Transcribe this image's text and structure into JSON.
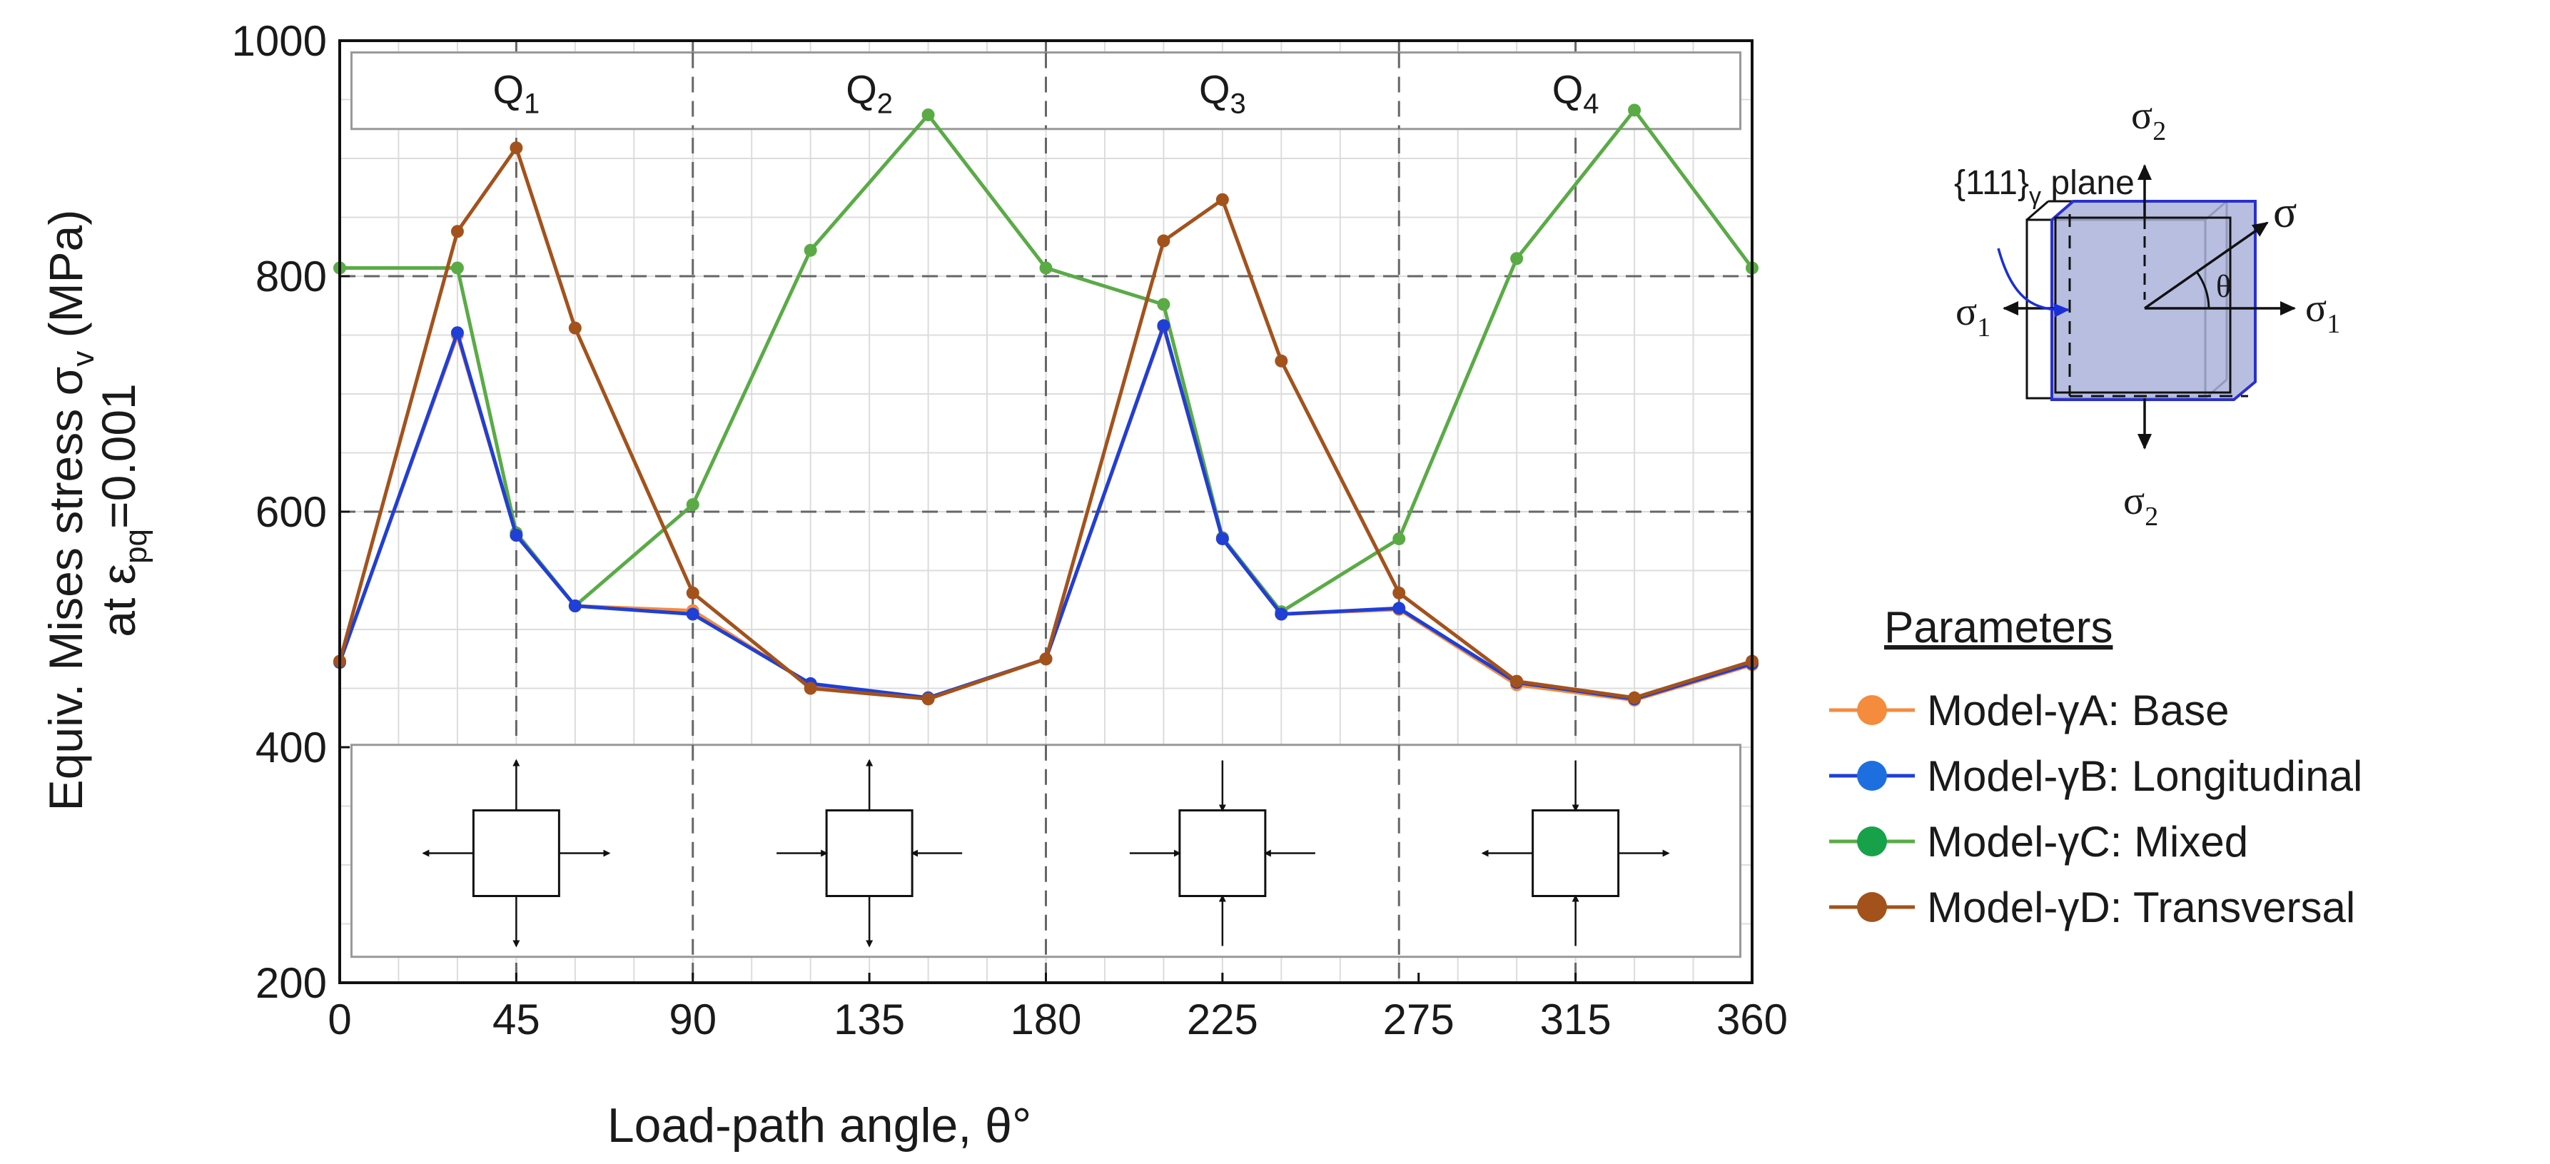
{
  "chart_data": {
    "type": "line",
    "xlabel_text": "Load-path angle, θ°",
    "ylabel_main": "Equiv. Mises stress σ",
    "ylabel_main_sub": "v",
    "ylabel_unit": " (MPa)",
    "ylabel_sub_prefix": "at ε",
    "ylabel_sub_sub": "pq",
    "ylabel_sub_suffix": "=0.001",
    "xlim": [
      0,
      360
    ],
    "ylim": [
      200,
      1000
    ],
    "x_ticks": [
      0,
      45,
      90,
      135,
      180,
      225,
      275,
      315,
      360
    ],
    "x_tick_labels": [
      "0",
      "45",
      "90",
      "135",
      "180",
      "225",
      "275",
      "315",
      "360"
    ],
    "y_ticks": [
      200,
      400,
      600,
      800,
      1000
    ],
    "y_tick_labels": [
      "200",
      "400",
      "600",
      "800",
      "1000"
    ],
    "quadrants": [
      {
        "label": "Q",
        "sub": "1",
        "x": 45
      },
      {
        "label": "Q",
        "sub": "2",
        "x": 135
      },
      {
        "label": "Q",
        "sub": "3",
        "x": 225
      },
      {
        "label": "Q",
        "sub": "4",
        "x": 315
      }
    ],
    "x": [
      0,
      30,
      45,
      60,
      90,
      120,
      150,
      180,
      210,
      225,
      240,
      270,
      300,
      330,
      360
    ],
    "series": [
      {
        "name": "Model-γA: Base",
        "color": "#f58b3c",
        "values": [
          473,
          750,
          580,
          520,
          516,
          453,
          441,
          475,
          757,
          577,
          513,
          517,
          453,
          440,
          470
        ]
      },
      {
        "name": "Model-γB: Longitudinal",
        "color": "#1f3fd6",
        "values": [
          472,
          752,
          580,
          520,
          513,
          454,
          442,
          475,
          758,
          577,
          513,
          518,
          455,
          441,
          471
        ]
      },
      {
        "name": "Model-γC: Mixed",
        "color": "#5aab46",
        "values": [
          807,
          807,
          582,
          520,
          606,
          822,
          937,
          807,
          776,
          578,
          515,
          577,
          815,
          941,
          807
        ]
      },
      {
        "name": "Model-γD: Transversal",
        "color": "#a3521c",
        "values": [
          473,
          838,
          909,
          756,
          531,
          450,
          441,
          475,
          830,
          865,
          728,
          531,
          456,
          442,
          473
        ]
      }
    ],
    "legend_title": "Parameters",
    "legend_colors": [
      "#f58b3c",
      "#1d6fe0",
      "#17a24a",
      "#a3521c"
    ],
    "legend_position": "right"
  },
  "diagram": {
    "plane_label": "{111}",
    "plane_sub": "γ",
    "plane_suffix": " plane",
    "sigma": "σ",
    "s1": "1",
    "s2": "2",
    "theta": "θ",
    "plane_fill": "#aab3db",
    "plane_stroke": "#2a2fd0"
  }
}
